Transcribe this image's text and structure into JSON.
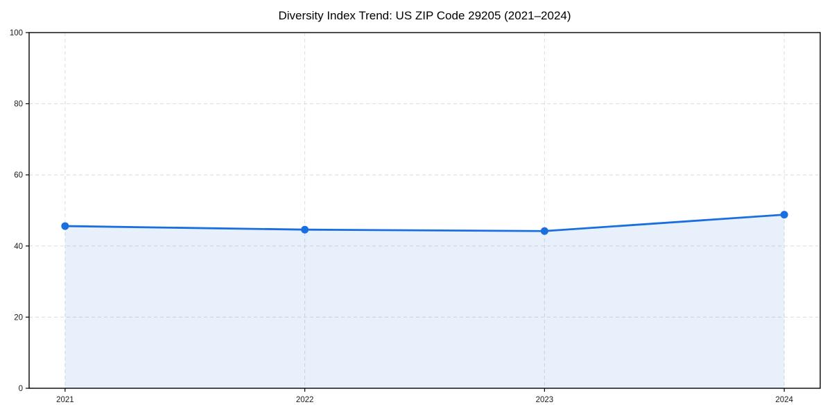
{
  "chart_data": {
    "type": "area",
    "title": "Diversity Index Trend: US ZIP Code 29205 (2021–2024)",
    "x": [
      2021,
      2022,
      2023,
      2024
    ],
    "values": [
      45.6,
      44.6,
      44.2,
      48.8
    ],
    "xticks": [
      "2021",
      "2022",
      "2023",
      "2024"
    ],
    "yticks": [
      0,
      20,
      40,
      60,
      80,
      100
    ],
    "ylim": [
      0,
      100
    ],
    "xlabel": "",
    "ylabel": "",
    "grid": true,
    "grid_style": "dashed",
    "legend": "none",
    "colors": {
      "line": "#1a6fe0",
      "marker": "#1a6fe0",
      "fill": "#1a6fe0",
      "fill_opacity": 0.1,
      "gridline": "#dcdcdc",
      "axis": "#000000",
      "tick_text": "#1a1a1a",
      "background": "#ffffff"
    }
  }
}
